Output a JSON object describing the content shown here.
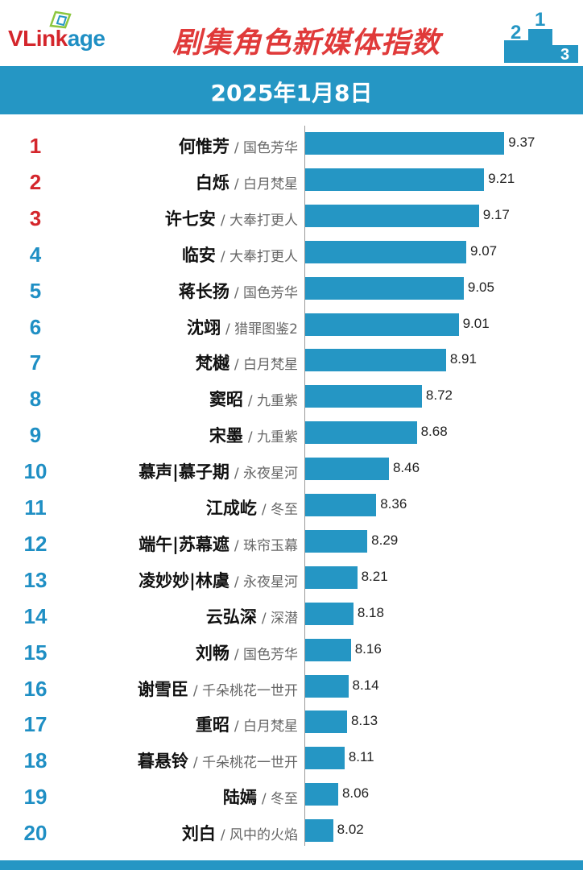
{
  "header": {
    "logo_text_1": "VLink",
    "logo_text_2": "age",
    "title": "剧集角色新媒体指数",
    "date": "2025年1月8日"
  },
  "colors": {
    "accent": "#2596c4",
    "rank_top": "#d4262c",
    "rank_other": "#1f8fc4",
    "title": "#e03a3a"
  },
  "separator": "/",
  "chart_data": {
    "type": "bar",
    "orientation": "horizontal",
    "title": "剧集角色新媒体指数",
    "subtitle": "2025年1月8日",
    "xlim": [
      7.8,
      9.4
    ],
    "rows": [
      {
        "rank": "1",
        "name": "何惟芳",
        "show": "国色芳华",
        "value": 9.37
      },
      {
        "rank": "2",
        "name": "白烁",
        "show": "白月梵星",
        "value": 9.21
      },
      {
        "rank": "3",
        "name": "许七安",
        "show": "大奉打更人",
        "value": 9.17
      },
      {
        "rank": "4",
        "name": "临安",
        "show": "大奉打更人",
        "value": 9.07
      },
      {
        "rank": "5",
        "name": "蒋长扬",
        "show": "国色芳华",
        "value": 9.05
      },
      {
        "rank": "6",
        "name": "沈翊",
        "show": "猎罪图鉴2",
        "value": 9.01
      },
      {
        "rank": "7",
        "name": "梵樾",
        "show": "白月梵星",
        "value": 8.91
      },
      {
        "rank": "8",
        "name": "窦昭",
        "show": "九重紫",
        "value": 8.72
      },
      {
        "rank": "9",
        "name": "宋墨",
        "show": "九重紫",
        "value": 8.68
      },
      {
        "rank": "10",
        "name": "慕声|慕子期",
        "show": "永夜星河",
        "value": 8.46
      },
      {
        "rank": "11",
        "name": "江成屹",
        "show": "冬至",
        "value": 8.36
      },
      {
        "rank": "12",
        "name": "端午|苏幕遮",
        "show": "珠帘玉幕",
        "value": 8.29
      },
      {
        "rank": "13",
        "name": "凌妙妙|林虞",
        "show": "永夜星河",
        "value": 8.21
      },
      {
        "rank": "14",
        "name": "云弘深",
        "show": "深潜",
        "value": 8.18
      },
      {
        "rank": "15",
        "name": "刘畅",
        "show": "国色芳华",
        "value": 8.16
      },
      {
        "rank": "16",
        "name": "谢雪臣",
        "show": "千朵桃花一世开",
        "value": 8.14
      },
      {
        "rank": "17",
        "name": "重昭",
        "show": "白月梵星",
        "value": 8.13
      },
      {
        "rank": "18",
        "name": "暮悬铃",
        "show": "千朵桃花一世开",
        "value": 8.11
      },
      {
        "rank": "19",
        "name": "陆嫣",
        "show": "冬至",
        "value": 8.06
      },
      {
        "rank": "20",
        "name": "刘白",
        "show": "风中的火焰",
        "value": 8.02
      }
    ]
  }
}
